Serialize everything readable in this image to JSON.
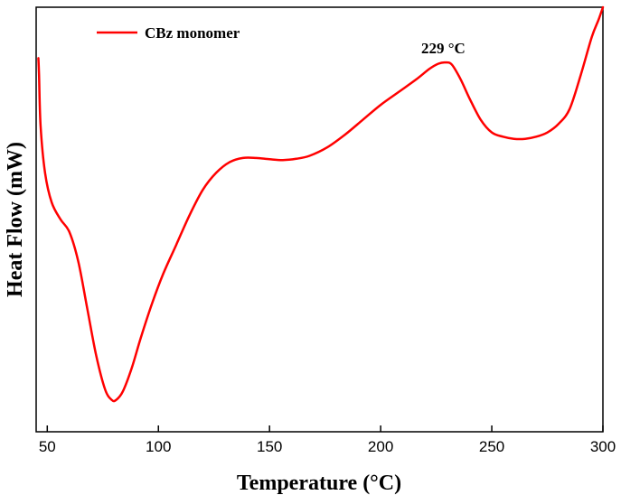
{
  "chart_data": {
    "type": "line",
    "title": "",
    "xlabel": "Temperature (°C)",
    "ylabel": "Heat Flow (mW)",
    "xlim": [
      45,
      300
    ],
    "ylim": [
      0,
      100
    ],
    "xticks": [
      50,
      100,
      150,
      200,
      250,
      300
    ],
    "xtick_labels": [
      "50",
      "100",
      "150",
      "200",
      "250",
      "300"
    ],
    "yticks_shown": false,
    "grid": false,
    "legend": {
      "placement": "top-left"
    },
    "series": [
      {
        "name": "CBz monomer",
        "color": "#ff0000",
        "x": [
          46,
          46.3,
          47,
          49,
          52,
          56,
          60,
          64,
          68,
          72,
          76,
          79,
          81,
          84,
          88,
          92,
          97,
          102,
          108,
          114,
          120,
          126,
          132,
          138,
          144,
          150,
          156,
          162,
          168,
          176,
          184,
          192,
          200,
          208,
          216,
          222,
          226,
          229,
          232,
          236,
          240,
          245,
          250,
          255,
          260,
          265,
          270,
          275,
          280,
          285,
          290,
          295,
          298,
          300
        ],
        "y": [
          88,
          84,
          72,
          61,
          54,
          50,
          47,
          40,
          29,
          18,
          10,
          7.5,
          7.5,
          9.5,
          15,
          22,
          30,
          37,
          44,
          51,
          57,
          61,
          63.5,
          64.5,
          64.5,
          64.2,
          64,
          64.3,
          65,
          67,
          70,
          73.5,
          77,
          80,
          83,
          85.5,
          86.7,
          87,
          86.5,
          83,
          78.5,
          73.5,
          70.5,
          69.5,
          69,
          69,
          69.5,
          70.5,
          72.5,
          76,
          84,
          93,
          97,
          100
        ]
      }
    ],
    "annotations": [
      {
        "text": "229 °C",
        "x": 229,
        "y": 87
      }
    ]
  }
}
